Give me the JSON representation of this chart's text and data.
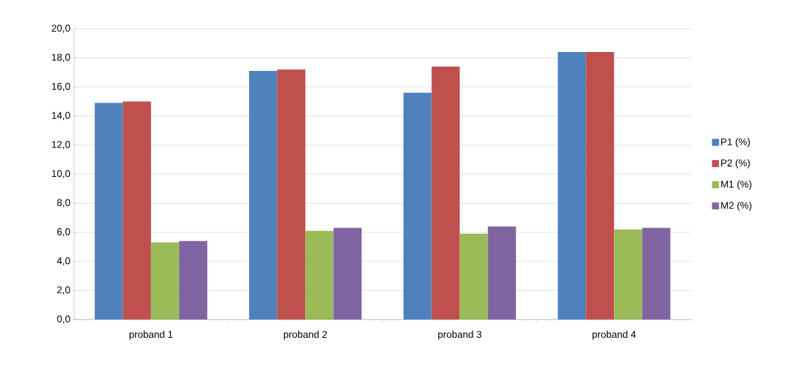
{
  "chart_data": {
    "type": "bar",
    "categories": [
      "proband 1",
      "proband 2",
      "proband 3",
      "proband 4"
    ],
    "series": [
      {
        "name": "P1 (%)",
        "color": "#4f81bd",
        "values": [
          14.9,
          17.1,
          15.6,
          18.4
        ]
      },
      {
        "name": "P2 (%)",
        "color": "#c0504d",
        "values": [
          15.0,
          17.2,
          17.4,
          18.4
        ]
      },
      {
        "name": "M1 (%)",
        "color": "#9bbb59",
        "values": [
          5.3,
          6.1,
          5.9,
          6.2
        ]
      },
      {
        "name": "M2 (%)",
        "color": "#8064a2",
        "values": [
          5.4,
          6.3,
          6.4,
          6.3
        ]
      }
    ],
    "ylim": [
      0,
      20
    ],
    "yticks": [
      {
        "value": 0,
        "label": "0,0"
      },
      {
        "value": 2,
        "label": "2,0"
      },
      {
        "value": 4,
        "label": "4,0"
      },
      {
        "value": 6,
        "label": "6,0"
      },
      {
        "value": 8,
        "label": "8,0"
      },
      {
        "value": 10,
        "label": "10,0"
      },
      {
        "value": 12,
        "label": "12,0"
      },
      {
        "value": 14,
        "label": "14,0"
      },
      {
        "value": 16,
        "label": "16,0"
      },
      {
        "value": 18,
        "label": "18,0"
      },
      {
        "value": 20,
        "label": "20,0"
      }
    ],
    "grid": "y",
    "legend": "right"
  }
}
